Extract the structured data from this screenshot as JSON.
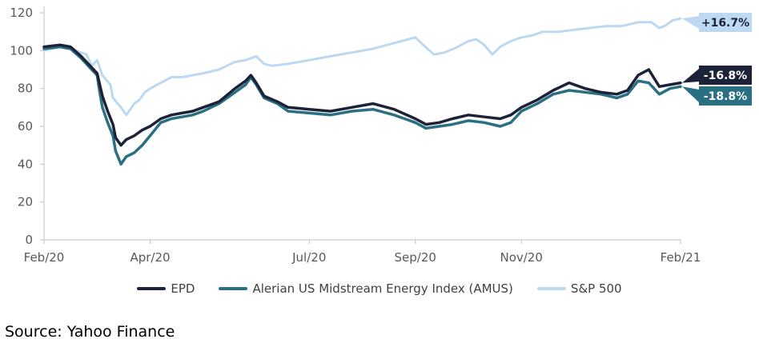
{
  "colors": {
    "epd": "#1c2238",
    "amus": "#2a6f82",
    "sp500": "#bcd9f1",
    "axis": "#bfbfbf",
    "tick_text": "#595959"
  },
  "chart_data": {
    "type": "line",
    "title": "",
    "xlabel": "",
    "ylabel": "",
    "ylim": [
      0,
      120
    ],
    "yticks": [
      0,
      20,
      40,
      60,
      80,
      100,
      120
    ],
    "x_tick_labels": [
      "Feb/20",
      "Apr/20",
      "Jul/20",
      "Sep/20",
      "Nov/20",
      "Feb/21"
    ],
    "x_tick_positions_months": [
      0,
      2,
      5,
      7,
      9,
      12
    ],
    "x_range_months": [
      0,
      12
    ],
    "series": [
      {
        "name": "S&P 500",
        "key": "sp500",
        "end_label": "+16.7%",
        "points": [
          [
            0,
            100
          ],
          [
            0.3,
            102
          ],
          [
            0.5,
            101
          ],
          [
            0.8,
            98
          ],
          [
            0.9,
            92
          ],
          [
            1.0,
            95
          ],
          [
            1.1,
            87
          ],
          [
            1.25,
            82
          ],
          [
            1.3,
            75
          ],
          [
            1.45,
            70
          ],
          [
            1.55,
            66
          ],
          [
            1.7,
            72
          ],
          [
            1.8,
            74
          ],
          [
            1.9,
            78
          ],
          [
            2.0,
            80
          ],
          [
            2.2,
            83
          ],
          [
            2.4,
            86
          ],
          [
            2.6,
            86
          ],
          [
            2.8,
            87
          ],
          [
            3.0,
            88
          ],
          [
            3.3,
            90
          ],
          [
            3.6,
            94
          ],
          [
            3.8,
            95
          ],
          [
            4.0,
            97
          ],
          [
            4.15,
            93
          ],
          [
            4.3,
            92
          ],
          [
            4.6,
            93
          ],
          [
            5.0,
            95
          ],
          [
            5.4,
            97
          ],
          [
            5.8,
            99
          ],
          [
            6.2,
            101
          ],
          [
            6.6,
            104
          ],
          [
            7.0,
            107
          ],
          [
            7.15,
            103
          ],
          [
            7.35,
            98
          ],
          [
            7.55,
            99
          ],
          [
            7.8,
            102
          ],
          [
            8.0,
            105
          ],
          [
            8.15,
            106
          ],
          [
            8.3,
            103
          ],
          [
            8.45,
            98
          ],
          [
            8.6,
            102
          ],
          [
            8.8,
            105
          ],
          [
            9.0,
            107
          ],
          [
            9.2,
            108
          ],
          [
            9.4,
            110
          ],
          [
            9.7,
            110
          ],
          [
            10.0,
            111
          ],
          [
            10.3,
            112
          ],
          [
            10.6,
            113
          ],
          [
            10.9,
            113
          ],
          [
            11.2,
            115
          ],
          [
            11.45,
            115
          ],
          [
            11.6,
            112
          ],
          [
            11.7,
            113
          ],
          [
            11.85,
            116
          ],
          [
            12.0,
            117
          ]
        ]
      },
      {
        "name": "Alerian US Midstream Energy Index (AMUS)",
        "key": "amus",
        "end_label": "-18.8%",
        "points": [
          [
            0,
            101
          ],
          [
            0.3,
            102
          ],
          [
            0.5,
            101
          ],
          [
            0.7,
            96
          ],
          [
            0.9,
            90
          ],
          [
            1.0,
            87
          ],
          [
            1.05,
            78
          ],
          [
            1.1,
            70
          ],
          [
            1.2,
            62
          ],
          [
            1.3,
            55
          ],
          [
            1.35,
            47
          ],
          [
            1.45,
            40
          ],
          [
            1.55,
            44
          ],
          [
            1.7,
            46
          ],
          [
            1.85,
            50
          ],
          [
            2.0,
            55
          ],
          [
            2.2,
            62
          ],
          [
            2.4,
            64
          ],
          [
            2.6,
            65
          ],
          [
            2.8,
            66
          ],
          [
            3.0,
            68
          ],
          [
            3.3,
            72
          ],
          [
            3.6,
            78
          ],
          [
            3.8,
            82
          ],
          [
            3.9,
            86
          ],
          [
            4.0,
            82
          ],
          [
            4.15,
            75
          ],
          [
            4.4,
            72
          ],
          [
            4.6,
            68
          ],
          [
            5.0,
            67
          ],
          [
            5.4,
            66
          ],
          [
            5.8,
            68
          ],
          [
            6.2,
            69
          ],
          [
            6.6,
            66
          ],
          [
            7.0,
            62
          ],
          [
            7.2,
            59
          ],
          [
            7.45,
            60
          ],
          [
            7.7,
            61
          ],
          [
            8.0,
            63
          ],
          [
            8.3,
            62
          ],
          [
            8.6,
            60
          ],
          [
            8.8,
            62
          ],
          [
            9.0,
            68
          ],
          [
            9.3,
            72
          ],
          [
            9.6,
            77
          ],
          [
            9.9,
            79
          ],
          [
            10.2,
            78
          ],
          [
            10.5,
            77
          ],
          [
            10.8,
            75
          ],
          [
            11.0,
            77
          ],
          [
            11.2,
            84
          ],
          [
            11.4,
            83
          ],
          [
            11.6,
            77
          ],
          [
            11.8,
            80
          ],
          [
            12.0,
            81
          ]
        ]
      },
      {
        "name": "EPD",
        "key": "epd",
        "end_label": "-16.8%",
        "points": [
          [
            0,
            102
          ],
          [
            0.3,
            103
          ],
          [
            0.5,
            102
          ],
          [
            0.7,
            97
          ],
          [
            0.9,
            91
          ],
          [
            1.0,
            88
          ],
          [
            1.05,
            82
          ],
          [
            1.1,
            76
          ],
          [
            1.2,
            68
          ],
          [
            1.3,
            61
          ],
          [
            1.35,
            54
          ],
          [
            1.45,
            50
          ],
          [
            1.55,
            53
          ],
          [
            1.7,
            55
          ],
          [
            1.85,
            58
          ],
          [
            2.0,
            60
          ],
          [
            2.2,
            64
          ],
          [
            2.4,
            66
          ],
          [
            2.6,
            67
          ],
          [
            2.8,
            68
          ],
          [
            3.0,
            70
          ],
          [
            3.3,
            73
          ],
          [
            3.6,
            80
          ],
          [
            3.8,
            84
          ],
          [
            3.9,
            87
          ],
          [
            4.0,
            83
          ],
          [
            4.15,
            76
          ],
          [
            4.4,
            73
          ],
          [
            4.6,
            70
          ],
          [
            5.0,
            69
          ],
          [
            5.4,
            68
          ],
          [
            5.8,
            70
          ],
          [
            6.2,
            72
          ],
          [
            6.6,
            69
          ],
          [
            7.0,
            64
          ],
          [
            7.2,
            61
          ],
          [
            7.45,
            62
          ],
          [
            7.7,
            64
          ],
          [
            8.0,
            66
          ],
          [
            8.3,
            65
          ],
          [
            8.6,
            64
          ],
          [
            8.8,
            66
          ],
          [
            9.0,
            70
          ],
          [
            9.3,
            74
          ],
          [
            9.6,
            79
          ],
          [
            9.9,
            83
          ],
          [
            10.2,
            80
          ],
          [
            10.5,
            78
          ],
          [
            10.8,
            77
          ],
          [
            11.0,
            79
          ],
          [
            11.2,
            87
          ],
          [
            11.4,
            90
          ],
          [
            11.6,
            81
          ],
          [
            11.8,
            82
          ],
          [
            12.0,
            83
          ]
        ]
      }
    ],
    "legend": [
      {
        "name": "EPD",
        "key": "epd"
      },
      {
        "name": "Alerian US Midstream Energy Index (AMUS)",
        "key": "amus"
      },
      {
        "name": "S&P 500",
        "key": "sp500"
      }
    ],
    "legend_position": "bottom"
  },
  "source": "Source: Yahoo Finance"
}
